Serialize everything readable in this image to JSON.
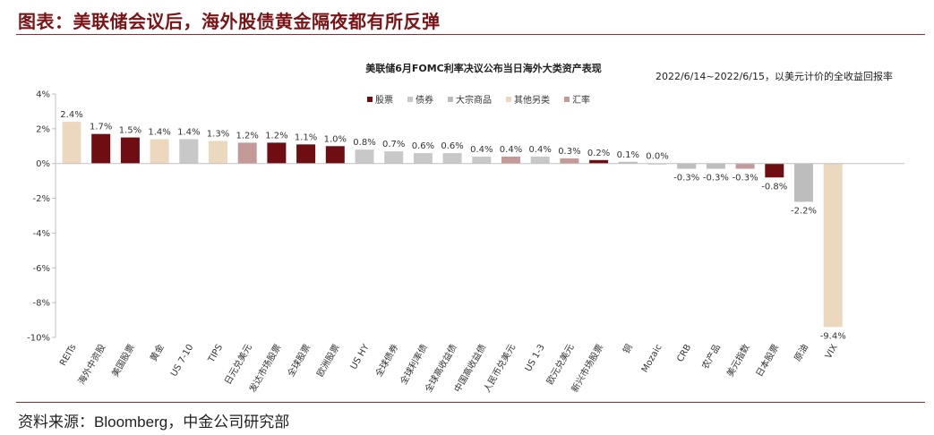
{
  "header": {
    "title": "图表：美联储会议后，海外股债黄金隔夜都有所反弹"
  },
  "footer": {
    "source": "资料来源：Bloomberg，中金公司研究部"
  },
  "chart_data": {
    "type": "bar",
    "title": "美联储6月FOMC利率决议公布当日海外大类资产表现",
    "subtitle": "2022/6/14~2022/6/15，以美元计价的全收益回报率",
    "ylim": [
      -10,
      4
    ],
    "yticks": [
      "4%",
      "2%",
      "0%",
      "-2%",
      "-4%",
      "-6%",
      "-8%",
      "-10%"
    ],
    "grid": false,
    "legend_position": "top-center",
    "legend": [
      {
        "name": "股票",
        "color": "#6e0d12"
      },
      {
        "name": "债券",
        "color": "#c8c8c8"
      },
      {
        "name": "大宗商品",
        "color": "#bdbdbd"
      },
      {
        "name": "其他另类",
        "color": "#ecd8bf"
      },
      {
        "name": "汇率",
        "color": "#c49a98"
      }
    ],
    "categories": [
      "REITs",
      "海外中资股",
      "美国股票",
      "黄金",
      "US 7-10",
      "TIPS",
      "日元兑美元",
      "发达市场股票",
      "全球股票",
      "欧洲股票",
      "US HY",
      "全球债券",
      "全球利率债",
      "全球高收益债",
      "中国高收益债",
      "人民币兑美元",
      "US 1-3",
      "欧元兑美元",
      "新兴市场股票",
      "铜",
      "Mozaic",
      "CRB",
      "农产品",
      "美元指数",
      "日本股票",
      "原油",
      "VIX"
    ],
    "values": [
      2.4,
      1.7,
      1.5,
      1.4,
      1.4,
      1.3,
      1.2,
      1.2,
      1.1,
      1.0,
      0.8,
      0.7,
      0.6,
      0.6,
      0.4,
      0.4,
      0.4,
      0.3,
      0.2,
      0.1,
      0.0,
      -0.3,
      -0.3,
      -0.3,
      -0.8,
      -2.2,
      -9.4
    ],
    "labels": [
      "2.4%",
      "1.7%",
      "1.5%",
      "1.4%",
      "1.4%",
      "1.3%",
      "1.2%",
      "1.2%",
      "1.1%",
      "1.0%",
      "0.8%",
      "0.7%",
      "0.6%",
      "0.6%",
      "0.4%",
      "0.4%",
      "0.4%",
      "0.3%",
      "0.2%",
      "0.1%",
      "0.0%",
      "-0.3%",
      "-0.3%",
      "-0.3%",
      "-0.8%",
      "-2.2%",
      "-9.4%"
    ],
    "colors": [
      "#ecd8bf",
      "#6e0d12",
      "#6e0d12",
      "#ecd8bf",
      "#c8c8c8",
      "#ecd8bf",
      "#c49a98",
      "#6e0d12",
      "#6e0d12",
      "#6e0d12",
      "#c8c8c8",
      "#c8c8c8",
      "#c8c8c8",
      "#c8c8c8",
      "#c8c8c8",
      "#c49a98",
      "#c8c8c8",
      "#c49a98",
      "#6e0d12",
      "#bdbdbd",
      "#bdbdbd",
      "#bdbdbd",
      "#bdbdbd",
      "#c49a98",
      "#6e0d12",
      "#bdbdbd",
      "#ecd8bf"
    ]
  }
}
